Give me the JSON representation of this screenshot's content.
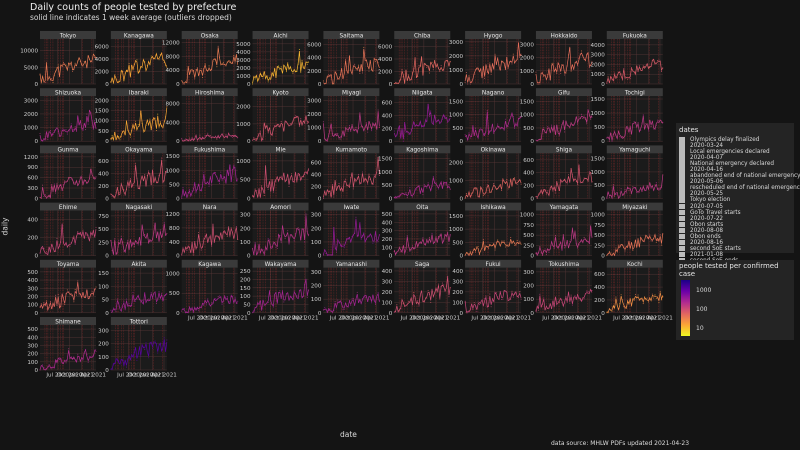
{
  "header": {
    "title": "Daily counts of people tested  by prefecture",
    "subtitle": "solid line indicates 1 week average (outliers dropped)"
  },
  "axes": {
    "ylabel": "daily",
    "xlabel": "date"
  },
  "caption": "data source: MHLW PDFs updated  2021-04-23",
  "legend_dates": {
    "title": "dates",
    "items": [
      "Olympics delay finalized",
      "2020-03-24",
      "Local emergencies declared",
      "2020-04-07",
      "National emergency declared",
      "2020-04-16",
      "abandoned end of national emergency",
      "2020-05-06",
      "rescheduled end of national emergency",
      "2020-05-25",
      "Tokyo election",
      "2020-07-05",
      "GoTo Travel starts",
      "2020-07-22",
      "Obon starts",
      "2020-08-08",
      "Obon ends",
      "2020-08-16",
      "second SoE starts",
      "2021-01-08",
      "second SoE ends",
      "2021-03-22"
    ]
  },
  "legend_ratio": {
    "title": "people tested per confirmed case",
    "ticks": [
      "1000",
      "100",
      "10"
    ]
  },
  "chart_data": {
    "type": "line",
    "facet_layout": {
      "columns": 9,
      "rows": 7
    },
    "x_tick_labels": [
      "Jul 2020",
      "Oct 2020",
      "Jan 2021",
      "Apr 2021"
    ],
    "x_tick_dates": [
      "2020-07-01",
      "2020-10-01",
      "2021-01-01",
      "2021-04-01"
    ],
    "x_range": [
      "2020-02-15",
      "2021-04-23"
    ],
    "reference_lines": [
      "2020-03-24",
      "2020-04-07",
      "2020-04-16",
      "2020-05-06",
      "2020-05-25",
      "2020-07-05",
      "2020-07-22",
      "2020-08-08",
      "2020-08-16",
      "2021-01-08",
      "2021-03-22"
    ],
    "palette": [
      "#0d0887",
      "#6a00a8",
      "#b12a90",
      "#e16462",
      "#fca636",
      "#f0f921"
    ],
    "panels": [
      {
        "name": "Tokyo",
        "ticks": [
          "0",
          "5000",
          "10000"
        ],
        "ymax": 13500,
        "peak": 9500,
        "start": 800,
        "tone": 0.72
      },
      {
        "name": "Kanagawa",
        "ticks": [
          "0",
          "2000",
          "4000",
          "6000"
        ],
        "ymax": 7200,
        "peak": 5500,
        "start": 300,
        "tone": 0.85
      },
      {
        "name": "Osaka",
        "ticks": [
          "0",
          "4000",
          "8000",
          "12000"
        ],
        "ymax": 13000,
        "peak": 9000,
        "start": 600,
        "tone": 0.72
      },
      {
        "name": "Aichi",
        "ticks": [
          "0",
          "1000",
          "2000",
          "3000",
          "4000",
          "5000"
        ],
        "ymax": 5600,
        "peak": 3200,
        "start": 200,
        "tone": 0.88
      },
      {
        "name": "Saitama",
        "ticks": [
          "0",
          "2000",
          "4000",
          "6000"
        ],
        "ymax": 6800,
        "peak": 4200,
        "start": 100,
        "tone": 0.7
      },
      {
        "name": "Chiba",
        "ticks": [
          "0",
          "2000",
          "4000",
          "6000"
        ],
        "ymax": 7200,
        "peak": 4500,
        "start": 100,
        "tone": 0.66
      },
      {
        "name": "Hyogo",
        "ticks": [
          "0",
          "1000",
          "2000",
          "3000"
        ],
        "ymax": 3200,
        "peak": 2400,
        "start": 200,
        "tone": 0.68
      },
      {
        "name": "Hokkaido",
        "ticks": [
          "0",
          "1000",
          "2000",
          "3000"
        ],
        "ymax": 3400,
        "peak": 2600,
        "start": 200,
        "tone": 0.68
      },
      {
        "name": "Fukuoka",
        "ticks": [
          "0",
          "1000",
          "2000",
          "3000",
          "4000"
        ],
        "ymax": 4600,
        "peak": 2800,
        "start": 200,
        "tone": 0.62
      },
      {
        "name": "Shizuoka",
        "ticks": [
          "0",
          "1000",
          "2000",
          "3000"
        ],
        "ymax": 3300,
        "peak": 1800,
        "start": 100,
        "tone": 0.45
      },
      {
        "name": "Ibaraki",
        "ticks": [
          "0",
          "500",
          "1000",
          "1500",
          "2000"
        ],
        "ymax": 2200,
        "peak": 1300,
        "start": 100,
        "tone": 0.85
      },
      {
        "name": "Hiroshima",
        "ticks": [
          "0",
          "4000",
          "8000"
        ],
        "ymax": 9500,
        "peak": 1500,
        "start": 100,
        "tone": 0.55
      },
      {
        "name": "Kyoto",
        "ticks": [
          "0",
          "1000",
          "2000"
        ],
        "ymax": 2600,
        "peak": 1600,
        "start": 100,
        "tone": 0.6
      },
      {
        "name": "Miyagi",
        "ticks": [
          "0",
          "1000",
          "2000",
          "3000"
        ],
        "ymax": 3300,
        "peak": 1700,
        "start": 100,
        "tone": 0.5
      },
      {
        "name": "Niigata",
        "ticks": [
          "0",
          "200",
          "400",
          "600"
        ],
        "ymax": 700,
        "peak": 500,
        "start": 60,
        "tone": 0.38
      },
      {
        "name": "Nagano",
        "ticks": [
          "0",
          "500",
          "1000",
          "1500"
        ],
        "ymax": 1700,
        "peak": 1000,
        "start": 50,
        "tone": 0.45
      },
      {
        "name": "Gifu",
        "ticks": [
          "0",
          "500",
          "1000",
          "1500"
        ],
        "ymax": 1700,
        "peak": 1100,
        "start": 50,
        "tone": 0.5
      },
      {
        "name": "Tochigi",
        "ticks": [
          "0",
          "500",
          "1000",
          "1500"
        ],
        "ymax": 1600,
        "peak": 900,
        "start": 50,
        "tone": 0.5
      },
      {
        "name": "Gunma",
        "ticks": [
          "0",
          "300",
          "600",
          "900",
          "1200"
        ],
        "ymax": 1300,
        "peak": 800,
        "start": 50,
        "tone": 0.52
      },
      {
        "name": "Okayama",
        "ticks": [
          "0",
          "200",
          "400",
          "600"
        ],
        "ymax": 720,
        "peak": 500,
        "start": 30,
        "tone": 0.6
      },
      {
        "name": "Fukushima",
        "ticks": [
          "0",
          "500",
          "1000",
          "1500"
        ],
        "ymax": 1600,
        "peak": 1200,
        "start": 50,
        "tone": 0.42
      },
      {
        "name": "Mie",
        "ticks": [
          "0",
          "500",
          "1000"
        ],
        "ymax": 1200,
        "peak": 900,
        "start": 40,
        "tone": 0.58
      },
      {
        "name": "Kumamoto",
        "ticks": [
          "0",
          "200",
          "400",
          "600"
        ],
        "ymax": 750,
        "peak": 500,
        "start": 30,
        "tone": 0.6
      },
      {
        "name": "Kagoshima",
        "ticks": [
          "0",
          "500",
          "1000",
          "1500"
        ],
        "ymax": 1700,
        "peak": 700,
        "start": 30,
        "tone": 0.45
      },
      {
        "name": "Okinawa",
        "ticks": [
          "0",
          "1000",
          "2000"
        ],
        "ymax": 2500,
        "peak": 1300,
        "start": 30,
        "tone": 0.65
      },
      {
        "name": "Shiga",
        "ticks": [
          "0",
          "200",
          "400",
          "600"
        ],
        "ymax": 700,
        "peak": 450,
        "start": 30,
        "tone": 0.6
      },
      {
        "name": "Yamaguchi",
        "ticks": [
          "0",
          "500",
          "1000",
          "1500"
        ],
        "ymax": 1700,
        "peak": 600,
        "start": 30,
        "tone": 0.5
      },
      {
        "name": "Ehime",
        "ticks": [
          "0",
          "200",
          "400"
        ],
        "ymax": 500,
        "peak": 320,
        "start": 20,
        "tone": 0.55
      },
      {
        "name": "Nagasaki",
        "ticks": [
          "0",
          "250",
          "500",
          "750"
        ],
        "ymax": 850,
        "peak": 550,
        "start": 30,
        "tone": 0.5
      },
      {
        "name": "Nara",
        "ticks": [
          "0",
          "400",
          "800",
          "1200"
        ],
        "ymax": 1300,
        "peak": 900,
        "start": 30,
        "tone": 0.58
      },
      {
        "name": "Aomori",
        "ticks": [
          "0",
          "100",
          "200",
          "300"
        ],
        "ymax": 330,
        "peak": 230,
        "start": 10,
        "tone": 0.48
      },
      {
        "name": "Iwate",
        "ticks": [
          "0",
          "100",
          "200",
          "300"
        ],
        "ymax": 330,
        "peak": 220,
        "start": 10,
        "tone": 0.38
      },
      {
        "name": "Oita",
        "ticks": [
          "0",
          "100",
          "200",
          "300",
          "400",
          "500"
        ],
        "ymax": 540,
        "peak": 300,
        "start": 20,
        "tone": 0.5
      },
      {
        "name": "Ishikawa",
        "ticks": [
          "0",
          "500",
          "1000",
          "1500"
        ],
        "ymax": 1700,
        "peak": 700,
        "start": 40,
        "tone": 0.72
      },
      {
        "name": "Yamagata",
        "ticks": [
          "0",
          "250",
          "500",
          "750",
          "1000"
        ],
        "ymax": 1100,
        "peak": 500,
        "start": 20,
        "tone": 0.5
      },
      {
        "name": "Miyazaki",
        "ticks": [
          "0",
          "250",
          "500",
          "750",
          "1000"
        ],
        "ymax": 1100,
        "peak": 600,
        "start": 20,
        "tone": 0.7
      },
      {
        "name": "Toyama",
        "ticks": [
          "0",
          "100",
          "200",
          "300",
          "400",
          "500"
        ],
        "ymax": 550,
        "peak": 350,
        "start": 20,
        "tone": 0.66
      },
      {
        "name": "Akita",
        "ticks": [
          "0",
          "50",
          "100",
          "150"
        ],
        "ymax": 170,
        "peak": 90,
        "start": 5,
        "tone": 0.42
      },
      {
        "name": "Kagawa",
        "ticks": [
          "0",
          "500",
          "1000"
        ],
        "ymax": 1150,
        "peak": 500,
        "start": 20,
        "tone": 0.42
      },
      {
        "name": "Wakayama",
        "ticks": [
          "0",
          "50",
          "100",
          "150",
          "200",
          "250"
        ],
        "ymax": 270,
        "peak": 180,
        "start": 10,
        "tone": 0.42
      },
      {
        "name": "Yamanashi",
        "ticks": [
          "0",
          "100",
          "200",
          "300"
        ],
        "ymax": 330,
        "peak": 150,
        "start": 10,
        "tone": 0.42
      },
      {
        "name": "Saga",
        "ticks": [
          "0",
          "100",
          "200",
          "300",
          "400"
        ],
        "ymax": 430,
        "peak": 300,
        "start": 20,
        "tone": 0.58
      },
      {
        "name": "Fukui",
        "ticks": [
          "0",
          "100",
          "200",
          "300",
          "400"
        ],
        "ymax": 430,
        "peak": 250,
        "start": 20,
        "tone": 0.55
      },
      {
        "name": "Tokushima",
        "ticks": [
          "0",
          "100",
          "200",
          "300"
        ],
        "ymax": 330,
        "peak": 160,
        "start": 10,
        "tone": 0.55
      },
      {
        "name": "Kochi",
        "ticks": [
          "0",
          "200",
          "400",
          "600"
        ],
        "ymax": 700,
        "peak": 350,
        "start": 10,
        "tone": 0.78
      },
      {
        "name": "Shimane",
        "ticks": [
          "0",
          "100",
          "200",
          "300",
          "400",
          "500"
        ],
        "ymax": 550,
        "peak": 250,
        "start": 10,
        "tone": 0.45
      },
      {
        "name": "Tottori",
        "ticks": [
          "0",
          "100",
          "200",
          "300"
        ],
        "ymax": 340,
        "peak": 250,
        "start": 10,
        "tone": 0.2
      }
    ]
  }
}
